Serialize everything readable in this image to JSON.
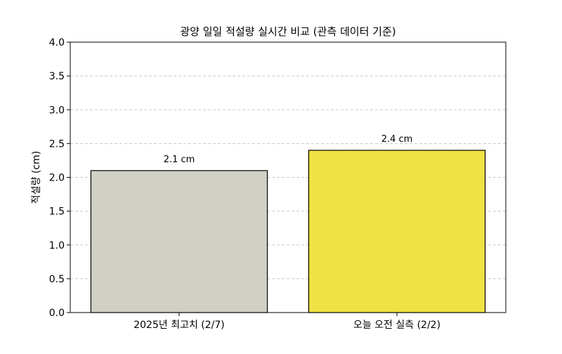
{
  "chart_data": {
    "type": "bar",
    "title": "광양 일일 적설량 실시간 비교 (관측 데이터 기준)",
    "xlabel": "",
    "ylabel": "적설량 (cm)",
    "categories": [
      "2025년 최고치 (2/7)",
      "오늘 오전 실측 (2/2)"
    ],
    "values": [
      2.1,
      2.4
    ],
    "data_labels": [
      "2.1 cm",
      "2.4 cm"
    ],
    "bar_colors": [
      "#d0d0c4",
      "#efe244"
    ],
    "ylim": [
      0,
      4.0
    ],
    "yticks": [
      "0.0",
      "0.5",
      "1.0",
      "1.5",
      "2.0",
      "2.5",
      "3.0",
      "3.5",
      "4.0"
    ],
    "grid": "horizontal-dashed",
    "legend": "none"
  }
}
